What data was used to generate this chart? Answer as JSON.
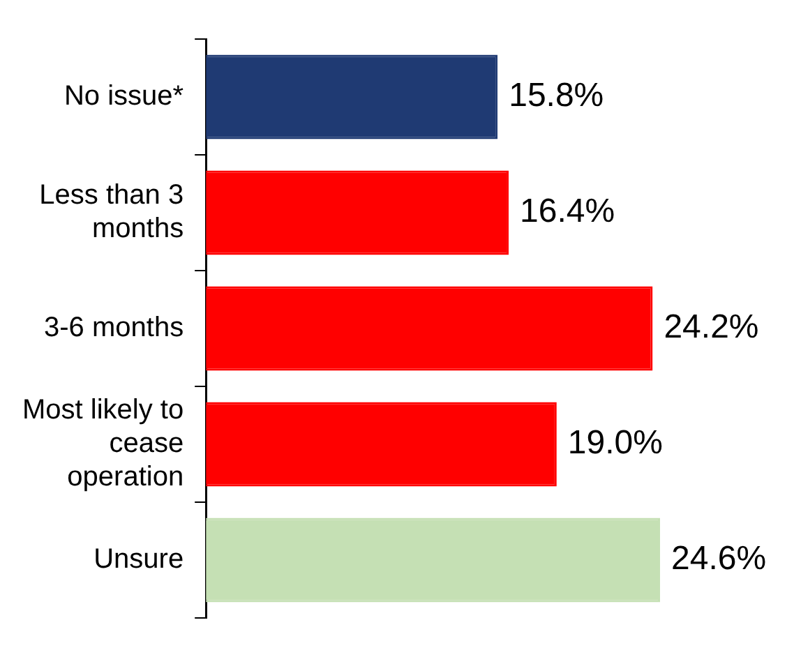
{
  "chart_data": {
    "type": "bar",
    "orientation": "horizontal",
    "categories": [
      "No issue*",
      "Less than 3 months",
      "3-6 months",
      "Most likely to cease operation",
      "Unsure"
    ],
    "values": [
      15.8,
      16.4,
      24.2,
      19.0,
      24.6
    ],
    "colors": [
      "#1f3a73",
      "#ff0000",
      "#ff0000",
      "#ff0000",
      "#c5e0b4"
    ],
    "value_labels": [
      "15.8%",
      "16.4%",
      "24.2%",
      "19.0%",
      "24.6%"
    ]
  }
}
